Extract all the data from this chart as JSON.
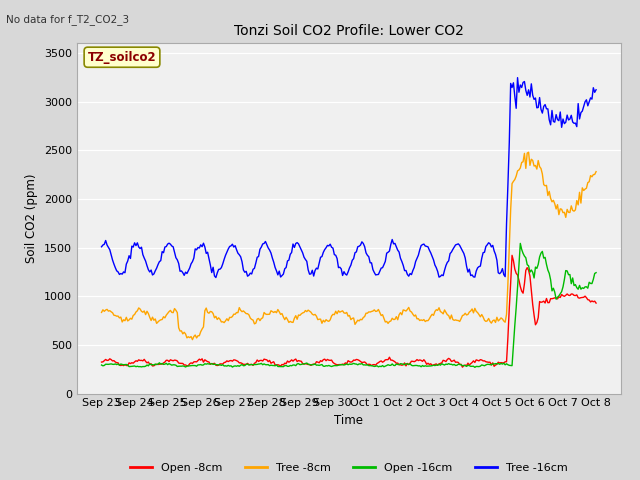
{
  "title": "Tonzi Soil CO2 Profile: Lower CO2",
  "subtitle": "No data for f_T2_CO2_3",
  "ylabel": "Soil CO2 (ppm)",
  "xlabel": "Time",
  "ylim": [
    0,
    3600
  ],
  "yticks": [
    0,
    500,
    1000,
    1500,
    2000,
    2500,
    3000,
    3500
  ],
  "xtick_labels": [
    "Sep 23",
    "Sep 24",
    "Sep 25",
    "Sep 26",
    "Sep 27",
    "Sep 28",
    "Sep 29",
    "Sep 30",
    "Oct 1",
    "Oct 2",
    "Oct 3",
    "Oct 4",
    "Oct 5",
    "Oct 6",
    "Oct 7",
    "Oct 8"
  ],
  "legend_label": "TZ_soilco2",
  "fig_bg_color": "#d8d8d8",
  "plot_bg_color": "#f0f0f0",
  "grid_color": "#ffffff",
  "series": {
    "open_8cm": {
      "color": "#ff0000",
      "label": "Open -8cm"
    },
    "tree_8cm": {
      "color": "#ffa500",
      "label": "Tree -8cm"
    },
    "open_16cm": {
      "color": "#00bb00",
      "label": "Open -16cm"
    },
    "tree_16cm": {
      "color": "#0000ff",
      "label": "Tree -16cm"
    }
  }
}
